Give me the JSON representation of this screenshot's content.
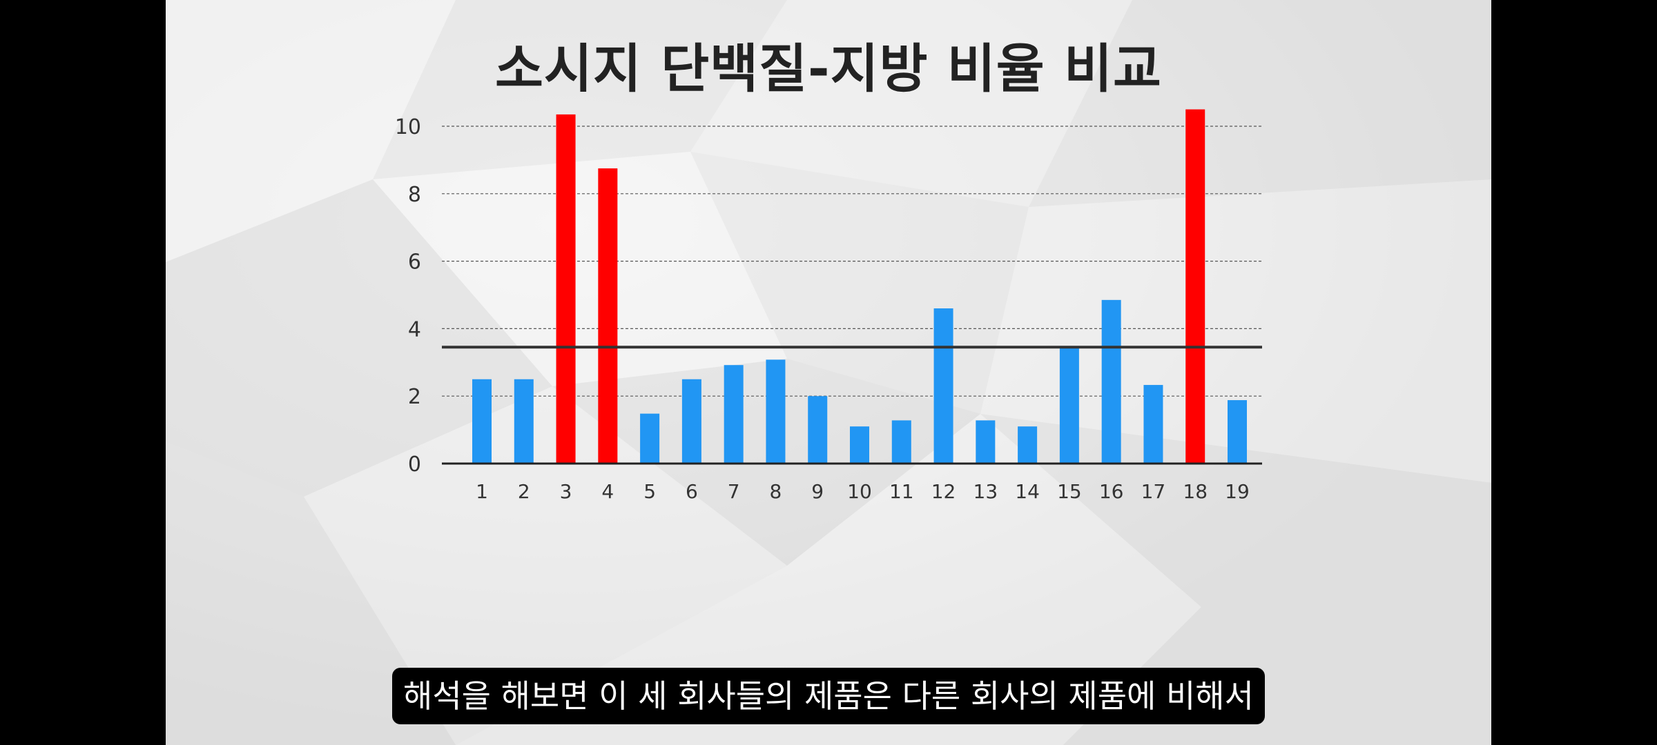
{
  "slide": {
    "title": "소시지 단백질-지방 비율 비교",
    "subtitle": "해석을 해보면 이 세 회사들의 제품은 다른 회사의 제품에 비해서"
  },
  "chart_data": {
    "type": "bar",
    "title": "소시지 단백질-지방 비율 비교",
    "xlabel": "",
    "ylabel": "",
    "categories": [
      "1",
      "2",
      "3",
      "4",
      "5",
      "6",
      "7",
      "8",
      "9",
      "10",
      "11",
      "12",
      "13",
      "14",
      "15",
      "16",
      "17",
      "18",
      "19"
    ],
    "values": [
      2.5,
      2.5,
      10.35,
      8.75,
      1.48,
      2.5,
      2.92,
      3.08,
      2.0,
      1.1,
      1.28,
      4.6,
      1.28,
      1.1,
      3.48,
      4.85,
      2.33,
      10.5,
      1.88
    ],
    "highlighted": [
      3,
      4,
      18
    ],
    "ylim": [
      0,
      10.8
    ],
    "yticks": [
      0,
      2,
      4,
      6,
      8,
      10
    ],
    "reference_line": 3.45,
    "grid": "horizontal-dashed",
    "colors": {
      "bar": "#2196f3",
      "highlight": "#ff0000",
      "axis": "#222222",
      "reference": "#333333",
      "grid": "#555555"
    }
  }
}
